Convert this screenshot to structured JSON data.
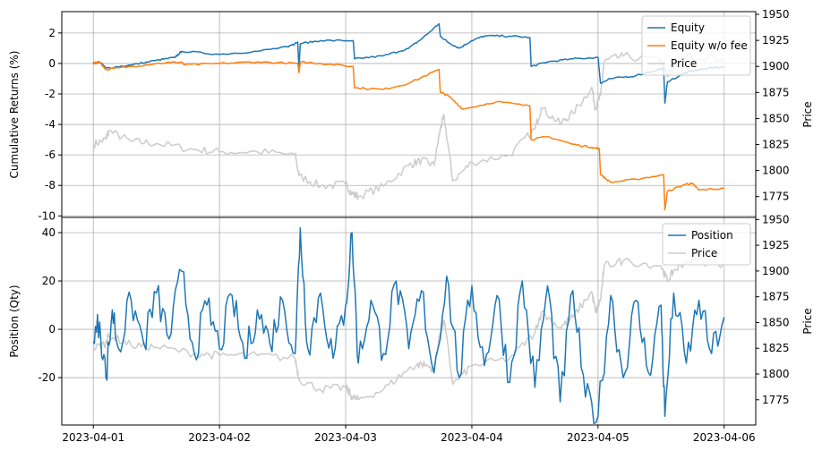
{
  "chart_data": [
    {
      "type": "line",
      "ylabel": "Cumulative Returns (%)",
      "ylabel_right": "Price",
      "ylim": [
        -10.1,
        3.4
      ],
      "ylim_right": [
        1755,
        1952.6
      ],
      "yticks": [
        2,
        0,
        -2,
        -4,
        -6,
        -8,
        -10
      ],
      "yticks_right": [
        1950,
        1925,
        1900,
        1875,
        1850,
        1825,
        1800,
        1775
      ],
      "grid": true,
      "legend_placement": "top-right",
      "series": [
        {
          "name": "Equity",
          "color": "#1f77b4",
          "axis": "left",
          "x": [
            0,
            0.05,
            0.1,
            0.3,
            0.5,
            0.65,
            0.7,
            1.0,
            1.3,
            1.55,
            1.62,
            1.63,
            1.64,
            1.8,
            2.06,
            2.07,
            2.3,
            2.5,
            2.6,
            2.74,
            2.75,
            2.81,
            2.9,
            3.0,
            3.1,
            3.3,
            3.46,
            3.47,
            3.6,
            3.8,
            4.0,
            4.02,
            4.1,
            4.3,
            4.52,
            4.53,
            4.55,
            4.7,
            4.8,
            5.0
          ],
          "y": [
            0,
            0.1,
            -0.3,
            -0.1,
            0.2,
            0.4,
            0.8,
            0.6,
            0.8,
            1.1,
            1.4,
            -0.3,
            1.3,
            1.5,
            1.5,
            0.3,
            0.5,
            1.0,
            1.6,
            2.6,
            1.8,
            1.4,
            1.0,
            1.5,
            1.8,
            1.8,
            1.7,
            -0.2,
            0.1,
            0.3,
            0.4,
            -1.3,
            -1.0,
            -0.8,
            -0.3,
            -2.6,
            -1.2,
            -0.6,
            -0.4,
            -0.2
          ]
        },
        {
          "name": "Equity w/o fee",
          "color": "#ff7f0e",
          "axis": "left",
          "x": [
            0,
            0.05,
            0.1,
            0.3,
            0.5,
            0.7,
            0.72,
            1.0,
            1.3,
            1.62,
            1.63,
            1.64,
            1.8,
            2.06,
            2.07,
            2.3,
            2.5,
            2.74,
            2.75,
            2.81,
            2.93,
            3.2,
            3.46,
            3.47,
            3.6,
            3.8,
            3.95,
            4.01,
            4.02,
            4.1,
            4.3,
            4.52,
            4.53,
            4.55,
            4.7,
            4.75,
            4.8,
            5.0
          ],
          "y": [
            0,
            0.1,
            -0.4,
            -0.2,
            0.0,
            0.1,
            -0.1,
            0.0,
            0.1,
            0.0,
            -0.6,
            0.1,
            0.0,
            -0.2,
            -1.6,
            -1.7,
            -1.3,
            -0.4,
            -1.9,
            -2.1,
            -3.0,
            -2.5,
            -2.8,
            -5.0,
            -4.8,
            -5.3,
            -5.5,
            -5.6,
            -7.3,
            -7.8,
            -7.6,
            -7.3,
            -9.6,
            -8.4,
            -7.9,
            -7.9,
            -8.3,
            -8.2
          ]
        },
        {
          "name": "Price",
          "color": "#cccccc",
          "axis": "right",
          "x": [
            0,
            0.1,
            0.12,
            0.3,
            0.5,
            0.8,
            1.0,
            1.3,
            1.6,
            1.63,
            1.8,
            2.0,
            2.05,
            2.1,
            2.3,
            2.5,
            2.6,
            2.7,
            2.75,
            2.78,
            2.85,
            3.0,
            3.3,
            3.5,
            3.55,
            3.7,
            3.8,
            3.95,
            3.98,
            4.02,
            4.05,
            4.2,
            4.5,
            4.55,
            4.6,
            4.7,
            5.0
          ],
          "y": [
            1825,
            1830,
            1838,
            1828,
            1826,
            1820,
            1818,
            1818,
            1815,
            1795,
            1785,
            1787,
            1778,
            1775,
            1785,
            1805,
            1810,
            1805,
            1840,
            1852,
            1790,
            1808,
            1815,
            1840,
            1860,
            1845,
            1855,
            1880,
            1860,
            1872,
            1905,
            1910,
            1905,
            1890,
            1900,
            1910,
            1907
          ]
        }
      ]
    },
    {
      "type": "line",
      "ylabel": "Position (Qty)",
      "ylabel_right": "Price",
      "ylim": [
        -39.6,
        46.3
      ],
      "ylim_right": [
        1750.5,
        1952
      ],
      "yticks": [
        40,
        20,
        0,
        -20
      ],
      "yticks_right": [
        1950,
        1925,
        1900,
        1875,
        1850,
        1825,
        1800,
        1775
      ],
      "xticks": [
        "2023-04-01",
        "2023-04-02",
        "2023-04-03",
        "2023-04-04",
        "2023-04-05",
        "2023-04-06"
      ],
      "grid": true,
      "legend_placement": "top-right",
      "series": [
        {
          "name": "Position",
          "color": "#1f77b4",
          "axis": "left",
          "x": [
            0,
            0.05,
            0.1,
            0.15,
            0.2,
            0.3,
            0.4,
            0.5,
            0.6,
            0.7,
            0.8,
            0.9,
            1.0,
            1.1,
            1.2,
            1.3,
            1.4,
            1.5,
            1.6,
            1.64,
            1.7,
            1.8,
            1.9,
            2.0,
            2.05,
            2.1,
            2.2,
            2.3,
            2.4,
            2.5,
            2.6,
            2.7,
            2.8,
            2.9,
            3.0,
            3.1,
            3.2,
            3.3,
            3.4,
            3.5,
            3.6,
            3.7,
            3.8,
            3.9,
            4.0,
            4.1,
            4.2,
            4.3,
            4.4,
            4.5,
            4.53,
            4.6,
            4.7,
            4.8,
            4.9,
            5.0
          ],
          "y": [
            -5,
            3,
            -20,
            8,
            -8,
            12,
            -6,
            15,
            -4,
            24,
            -10,
            10,
            -8,
            14,
            -12,
            8,
            -6,
            12,
            -10,
            42,
            -8,
            15,
            -12,
            10,
            40,
            -14,
            12,
            -10,
            20,
            -8,
            16,
            -18,
            22,
            -20,
            18,
            -15,
            14,
            -22,
            20,
            -24,
            18,
            -30,
            16,
            -28,
            -36,
            14,
            -20,
            12,
            -18,
            10,
            -36,
            15,
            -14,
            12,
            -10,
            5
          ]
        },
        {
          "name": "Price",
          "color": "#cccccc",
          "axis": "right",
          "x": [
            0,
            0.1,
            0.12,
            0.3,
            0.5,
            0.8,
            1.0,
            1.3,
            1.6,
            1.63,
            1.8,
            2.0,
            2.05,
            2.1,
            2.3,
            2.5,
            2.6,
            2.7,
            2.75,
            2.78,
            2.85,
            3.0,
            3.3,
            3.5,
            3.55,
            3.7,
            3.8,
            3.95,
            3.98,
            4.02,
            4.05,
            4.2,
            4.5,
            4.55,
            4.6,
            4.7,
            5.0
          ],
          "y": [
            1825,
            1830,
            1838,
            1828,
            1826,
            1820,
            1818,
            1818,
            1815,
            1795,
            1785,
            1787,
            1778,
            1775,
            1785,
            1805,
            1810,
            1805,
            1840,
            1852,
            1790,
            1808,
            1815,
            1840,
            1860,
            1845,
            1855,
            1880,
            1860,
            1872,
            1905,
            1910,
            1905,
            1890,
            1900,
            1910,
            1907
          ]
        }
      ]
    }
  ]
}
